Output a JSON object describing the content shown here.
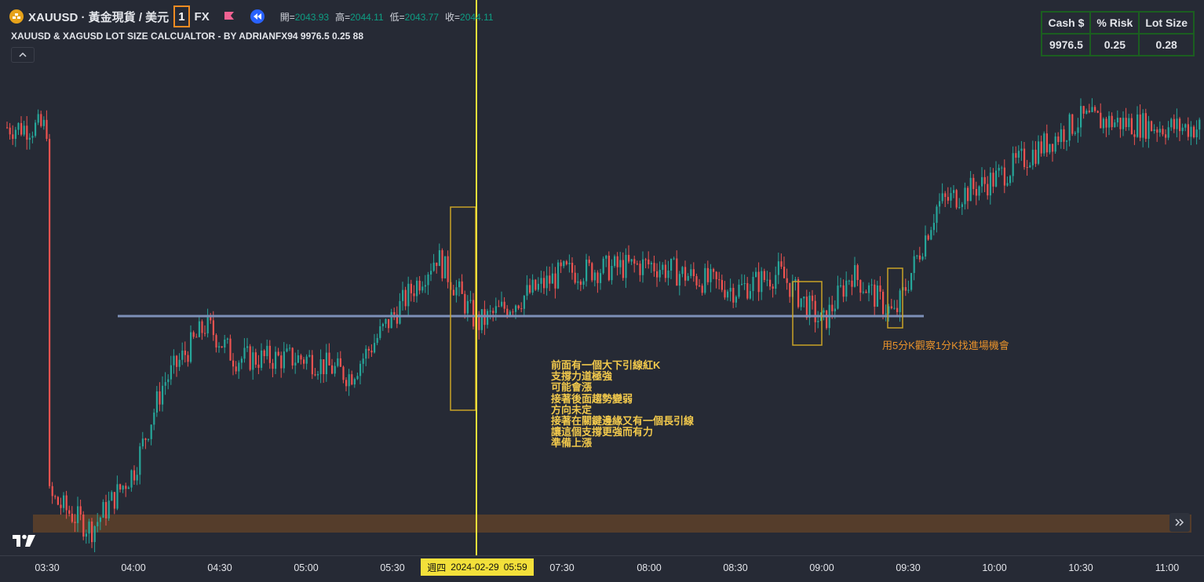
{
  "header": {
    "symbol": "XAUUSD · 黃金現貨 / 美元",
    "timeframe": "1",
    "exchange": "FX",
    "ohlc": [
      {
        "label": "開=",
        "value": "2043.93"
      },
      {
        "label": "高=",
        "value": "2044.11"
      },
      {
        "label": "低=",
        "value": "2043.77"
      },
      {
        "label": "收=",
        "value": "2044.11"
      }
    ],
    "indicator": "XAUUSD & XAGUSD LOT SIZE CALCUALTOR - BY ADRIANFX94 9976.5 0.25 88"
  },
  "calculator": {
    "headers": [
      "Cash $",
      "% Risk",
      "Lot Size"
    ],
    "values": [
      "9976.5",
      "0.25",
      "0.28"
    ]
  },
  "annotations": {
    "note_lines": [
      "前面有一個大下引線紅K",
      "支撐力道極強",
      "可能會漲",
      "接著後面趨勢變弱",
      "方向未定",
      "接著在關鍵邊緣又有一個長引線",
      "讓這個支撐更強而有力",
      "準備上漲"
    ],
    "note2": "用5分K觀察1分K找進場機會"
  },
  "xaxis": {
    "ticks": [
      "03:30",
      "04:00",
      "04:30",
      "05:00",
      "05:30",
      "07:30",
      "08:00",
      "08:30",
      "09:00",
      "09:30",
      "10:00",
      "10:30",
      "11:00"
    ],
    "crosshair_weekday": "週四",
    "crosshair_date": "2024-02-29",
    "crosshair_time": "05:59"
  },
  "colors": {
    "background": "#262a35",
    "up": "#26a69a",
    "down": "#ef5350",
    "support_line": "#7d90b8",
    "crosshair": "#f3e03a",
    "zone": "#5b3f2a"
  },
  "chart_data": {
    "type": "candlestick",
    "symbol": "XAUUSD",
    "x_range": [
      "03:30",
      "11:00"
    ],
    "trend_path": [
      {
        "time": "03:30",
        "price": 2021.0
      },
      {
        "time": "03:45",
        "price": 2019.0
      },
      {
        "time": "04:00",
        "price": 2022.5
      },
      {
        "time": "04:10",
        "price": 2027.5
      },
      {
        "time": "04:25",
        "price": 2031.0
      },
      {
        "time": "04:35",
        "price": 2029.0
      },
      {
        "time": "05:00",
        "price": 2029.0
      },
      {
        "time": "05:15",
        "price": 2028.0
      },
      {
        "time": "05:30",
        "price": 2031.5
      },
      {
        "time": "05:45",
        "price": 2035.0
      },
      {
        "time": "05:59",
        "price": 2031.0
      },
      {
        "time": "07:30",
        "price": 2034.0
      },
      {
        "time": "08:00",
        "price": 2034.5
      },
      {
        "time": "08:30",
        "price": 2033.0
      },
      {
        "time": "08:45",
        "price": 2034.0
      },
      {
        "time": "09:00",
        "price": 2031.0
      },
      {
        "time": "09:10",
        "price": 2034.0
      },
      {
        "time": "09:25",
        "price": 2031.5
      },
      {
        "time": "09:40",
        "price": 2038.0
      },
      {
        "time": "10:00",
        "price": 2039.5
      },
      {
        "time": "10:30",
        "price": 2043.0
      },
      {
        "time": "11:00",
        "price": 2042.5
      }
    ],
    "support_level": 2031.0,
    "zone_range": [
      2019.5,
      2020.5
    ]
  }
}
